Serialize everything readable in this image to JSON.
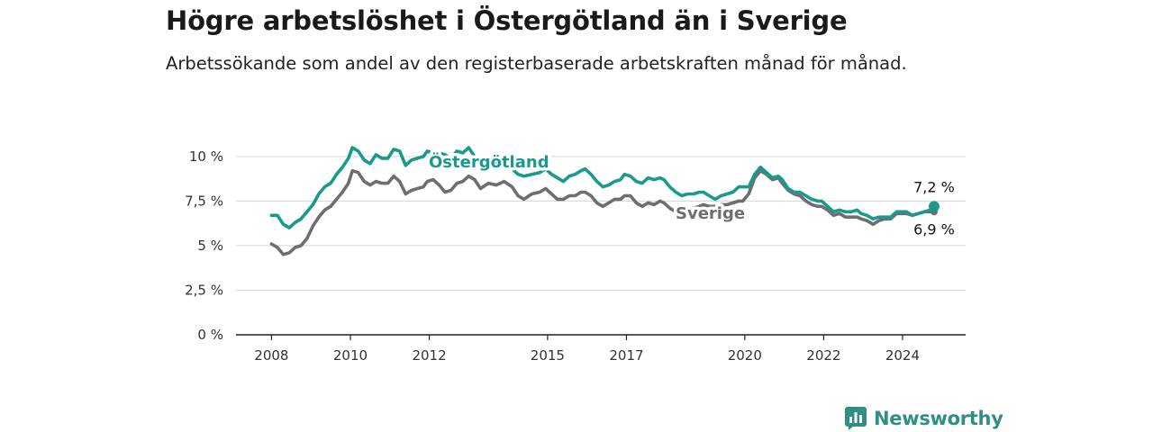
{
  "header": {
    "title": "Högre arbetslöshet i Östergötland än i Sverige",
    "subtitle": "Arbetssökande som andel av den registerbaserade arbetskraften månad för månad."
  },
  "brand": {
    "name": "Newsworthy",
    "icon": "bar-chart-speech-bubble-icon",
    "color": "#2f8f85"
  },
  "chart_data": {
    "type": "line",
    "title": "Högre arbetslöshet i Östergötland än i Sverige",
    "subtitle": "Arbetssökande som andel av den registerbaserade arbetskraften månad för månad.",
    "xlabel": "",
    "ylabel": "",
    "x_ticks": [
      2008,
      2010,
      2012,
      2015,
      2017,
      2020,
      2022,
      2024
    ],
    "y_ticks": [
      0,
      2.5,
      5,
      7.5,
      10
    ],
    "y_tick_labels": [
      "0 %",
      "2,5 %",
      "5 %",
      "7,5 %",
      "10 %"
    ],
    "xlim": [
      2007.1,
      2025.6
    ],
    "ylim": [
      0,
      10.5
    ],
    "grid": true,
    "legend": "inline labels on lines",
    "series": [
      {
        "name": "Östergötland",
        "color": "#1a9a8c",
        "end_label": "7,2 %",
        "points": [
          [
            2008.0,
            6.7
          ],
          [
            2008.15,
            6.7
          ],
          [
            2008.3,
            6.2
          ],
          [
            2008.45,
            6.0
          ],
          [
            2008.6,
            6.3
          ],
          [
            2008.75,
            6.5
          ],
          [
            2008.9,
            6.9
          ],
          [
            2009.05,
            7.3
          ],
          [
            2009.2,
            7.9
          ],
          [
            2009.35,
            8.3
          ],
          [
            2009.5,
            8.5
          ],
          [
            2009.65,
            9.0
          ],
          [
            2009.8,
            9.4
          ],
          [
            2009.95,
            9.9
          ],
          [
            2010.05,
            10.5
          ],
          [
            2010.2,
            10.3
          ],
          [
            2010.35,
            9.8
          ],
          [
            2010.5,
            9.6
          ],
          [
            2010.65,
            10.1
          ],
          [
            2010.8,
            9.9
          ],
          [
            2010.95,
            9.9
          ],
          [
            2011.1,
            10.4
          ],
          [
            2011.25,
            10.3
          ],
          [
            2011.4,
            9.5
          ],
          [
            2011.55,
            9.8
          ],
          [
            2011.7,
            9.9
          ],
          [
            2011.85,
            10.0
          ],
          [
            2011.95,
            10.3
          ],
          [
            2012.1,
            10.2
          ],
          [
            2012.25,
            10.2
          ],
          [
            2012.4,
            10.1
          ],
          [
            2012.55,
            9.9
          ],
          [
            2012.7,
            10.3
          ],
          [
            2012.85,
            10.2
          ],
          [
            2013.0,
            10.5
          ],
          [
            2013.15,
            10.0
          ],
          [
            2013.3,
            9.8
          ],
          [
            2013.5,
            9.9
          ],
          [
            2013.7,
            9.7
          ],
          [
            2013.9,
            9.5
          ],
          [
            2014.1,
            9.3
          ],
          [
            2014.25,
            9.0
          ],
          [
            2014.4,
            8.9
          ],
          [
            2014.6,
            9.0
          ],
          [
            2014.8,
            9.1
          ],
          [
            2014.95,
            9.3
          ],
          [
            2015.1,
            9.0
          ],
          [
            2015.25,
            8.8
          ],
          [
            2015.4,
            8.6
          ],
          [
            2015.55,
            8.9
          ],
          [
            2015.7,
            9.0
          ],
          [
            2015.85,
            9.2
          ],
          [
            2015.95,
            9.3
          ],
          [
            2016.1,
            9.0
          ],
          [
            2016.25,
            8.6
          ],
          [
            2016.4,
            8.3
          ],
          [
            2016.55,
            8.4
          ],
          [
            2016.7,
            8.6
          ],
          [
            2016.85,
            8.7
          ],
          [
            2016.95,
            9.0
          ],
          [
            2017.1,
            8.9
          ],
          [
            2017.25,
            8.6
          ],
          [
            2017.4,
            8.5
          ],
          [
            2017.55,
            8.8
          ],
          [
            2017.7,
            8.7
          ],
          [
            2017.85,
            8.8
          ],
          [
            2017.95,
            8.7
          ],
          [
            2018.1,
            8.3
          ],
          [
            2018.25,
            8.0
          ],
          [
            2018.4,
            7.8
          ],
          [
            2018.55,
            7.9
          ],
          [
            2018.7,
            7.9
          ],
          [
            2018.85,
            8.0
          ],
          [
            2018.95,
            8.0
          ],
          [
            2019.1,
            7.8
          ],
          [
            2019.25,
            7.6
          ],
          [
            2019.4,
            7.8
          ],
          [
            2019.55,
            7.9
          ],
          [
            2019.7,
            8.0
          ],
          [
            2019.85,
            8.3
          ],
          [
            2019.95,
            8.3
          ],
          [
            2020.1,
            8.3
          ],
          [
            2020.25,
            9.0
          ],
          [
            2020.4,
            9.4
          ],
          [
            2020.55,
            9.1
          ],
          [
            2020.7,
            8.8
          ],
          [
            2020.85,
            8.9
          ],
          [
            2020.95,
            8.7
          ],
          [
            2021.1,
            8.2
          ],
          [
            2021.25,
            8.0
          ],
          [
            2021.4,
            8.0
          ],
          [
            2021.55,
            7.8
          ],
          [
            2021.7,
            7.6
          ],
          [
            2021.85,
            7.5
          ],
          [
            2021.95,
            7.5
          ],
          [
            2022.1,
            7.2
          ],
          [
            2022.25,
            6.9
          ],
          [
            2022.4,
            7.0
          ],
          [
            2022.55,
            6.9
          ],
          [
            2022.7,
            6.9
          ],
          [
            2022.85,
            7.0
          ],
          [
            2022.95,
            6.8
          ],
          [
            2023.1,
            6.7
          ],
          [
            2023.25,
            6.5
          ],
          [
            2023.4,
            6.6
          ],
          [
            2023.55,
            6.6
          ],
          [
            2023.7,
            6.6
          ],
          [
            2023.85,
            6.9
          ],
          [
            2023.95,
            6.9
          ],
          [
            2024.1,
            6.9
          ],
          [
            2024.25,
            6.7
          ],
          [
            2024.4,
            6.8
          ],
          [
            2024.55,
            6.9
          ],
          [
            2024.7,
            7.0
          ],
          [
            2024.8,
            7.2
          ]
        ]
      },
      {
        "name": "Sverige",
        "color": "#6e6e72",
        "end_label": "6,9 %",
        "points": [
          [
            2008.0,
            5.1
          ],
          [
            2008.15,
            4.9
          ],
          [
            2008.3,
            4.5
          ],
          [
            2008.45,
            4.6
          ],
          [
            2008.6,
            4.9
          ],
          [
            2008.75,
            5.0
          ],
          [
            2008.9,
            5.4
          ],
          [
            2009.05,
            6.1
          ],
          [
            2009.2,
            6.6
          ],
          [
            2009.35,
            7.0
          ],
          [
            2009.5,
            7.2
          ],
          [
            2009.65,
            7.6
          ],
          [
            2009.8,
            8.0
          ],
          [
            2009.95,
            8.5
          ],
          [
            2010.05,
            9.2
          ],
          [
            2010.2,
            9.1
          ],
          [
            2010.35,
            8.6
          ],
          [
            2010.5,
            8.4
          ],
          [
            2010.65,
            8.6
          ],
          [
            2010.8,
            8.5
          ],
          [
            2010.95,
            8.5
          ],
          [
            2011.1,
            8.9
          ],
          [
            2011.25,
            8.6
          ],
          [
            2011.4,
            7.9
          ],
          [
            2011.55,
            8.1
          ],
          [
            2011.7,
            8.2
          ],
          [
            2011.85,
            8.3
          ],
          [
            2011.95,
            8.6
          ],
          [
            2012.1,
            8.7
          ],
          [
            2012.25,
            8.4
          ],
          [
            2012.4,
            8.0
          ],
          [
            2012.55,
            8.1
          ],
          [
            2012.7,
            8.5
          ],
          [
            2012.85,
            8.6
          ],
          [
            2013.0,
            8.9
          ],
          [
            2013.15,
            8.7
          ],
          [
            2013.3,
            8.2
          ],
          [
            2013.5,
            8.5
          ],
          [
            2013.7,
            8.4
          ],
          [
            2013.9,
            8.6
          ],
          [
            2014.1,
            8.3
          ],
          [
            2014.25,
            7.8
          ],
          [
            2014.4,
            7.6
          ],
          [
            2014.6,
            7.9
          ],
          [
            2014.8,
            8.0
          ],
          [
            2014.95,
            8.2
          ],
          [
            2015.1,
            7.9
          ],
          [
            2015.25,
            7.6
          ],
          [
            2015.4,
            7.6
          ],
          [
            2015.55,
            7.8
          ],
          [
            2015.7,
            7.8
          ],
          [
            2015.85,
            8.0
          ],
          [
            2015.95,
            8.0
          ],
          [
            2016.1,
            7.8
          ],
          [
            2016.25,
            7.4
          ],
          [
            2016.4,
            7.2
          ],
          [
            2016.55,
            7.4
          ],
          [
            2016.7,
            7.6
          ],
          [
            2016.85,
            7.6
          ],
          [
            2016.95,
            7.8
          ],
          [
            2017.1,
            7.8
          ],
          [
            2017.25,
            7.4
          ],
          [
            2017.4,
            7.2
          ],
          [
            2017.55,
            7.4
          ],
          [
            2017.7,
            7.3
          ],
          [
            2017.85,
            7.5
          ],
          [
            2017.95,
            7.4
          ],
          [
            2018.1,
            7.1
          ],
          [
            2018.25,
            6.9
          ],
          [
            2018.4,
            6.9
          ],
          [
            2018.55,
            7.0
          ],
          [
            2018.7,
            7.1
          ],
          [
            2018.85,
            7.2
          ],
          [
            2018.95,
            7.3
          ],
          [
            2019.1,
            7.2
          ],
          [
            2019.25,
            7.2
          ],
          [
            2019.4,
            7.3
          ],
          [
            2019.55,
            7.3
          ],
          [
            2019.7,
            7.4
          ],
          [
            2019.85,
            7.5
          ],
          [
            2019.95,
            7.5
          ],
          [
            2020.1,
            7.9
          ],
          [
            2020.25,
            8.8
          ],
          [
            2020.4,
            9.2
          ],
          [
            2020.55,
            9.0
          ],
          [
            2020.7,
            8.7
          ],
          [
            2020.85,
            8.8
          ],
          [
            2020.95,
            8.5
          ],
          [
            2021.1,
            8.1
          ],
          [
            2021.25,
            7.9
          ],
          [
            2021.4,
            7.8
          ],
          [
            2021.55,
            7.5
          ],
          [
            2021.7,
            7.3
          ],
          [
            2021.85,
            7.2
          ],
          [
            2021.95,
            7.2
          ],
          [
            2022.1,
            7.0
          ],
          [
            2022.25,
            6.7
          ],
          [
            2022.4,
            6.8
          ],
          [
            2022.55,
            6.6
          ],
          [
            2022.7,
            6.6
          ],
          [
            2022.85,
            6.6
          ],
          [
            2022.95,
            6.5
          ],
          [
            2023.1,
            6.4
          ],
          [
            2023.25,
            6.2
          ],
          [
            2023.4,
            6.4
          ],
          [
            2023.55,
            6.5
          ],
          [
            2023.7,
            6.5
          ],
          [
            2023.85,
            6.8
          ],
          [
            2023.95,
            6.8
          ],
          [
            2024.1,
            6.8
          ],
          [
            2024.25,
            6.7
          ],
          [
            2024.4,
            6.8
          ],
          [
            2024.55,
            6.9
          ],
          [
            2024.7,
            6.9
          ],
          [
            2024.8,
            6.9
          ]
        ]
      }
    ]
  }
}
